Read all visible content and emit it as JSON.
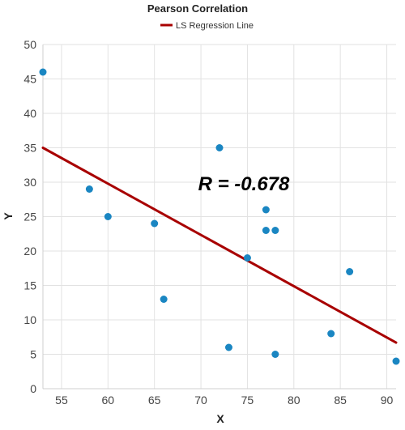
{
  "chart_data": {
    "type": "scatter",
    "title": "Pearson Correlation",
    "xlabel": "X",
    "ylabel": "Y",
    "xlim": [
      53,
      91
    ],
    "ylim": [
      0,
      50
    ],
    "xticks": [
      55,
      60,
      65,
      70,
      75,
      80,
      85,
      90
    ],
    "yticks": [
      0,
      5,
      10,
      15,
      20,
      25,
      30,
      35,
      40,
      45,
      50
    ],
    "grid": true,
    "legend_position": "top",
    "annotation": "R = -0.678",
    "points": [
      {
        "x": 53,
        "y": 46
      },
      {
        "x": 58,
        "y": 29
      },
      {
        "x": 60,
        "y": 25
      },
      {
        "x": 65,
        "y": 24
      },
      {
        "x": 66,
        "y": 13
      },
      {
        "x": 72,
        "y": 35
      },
      {
        "x": 73,
        "y": 6
      },
      {
        "x": 75,
        "y": 19
      },
      {
        "x": 77,
        "y": 26
      },
      {
        "x": 77,
        "y": 23
      },
      {
        "x": 78,
        "y": 23
      },
      {
        "x": 78,
        "y": 5
      },
      {
        "x": 84,
        "y": 8
      },
      {
        "x": 86,
        "y": 17
      },
      {
        "x": 91,
        "y": 4
      }
    ],
    "regression_line": {
      "name": "LS Regression Line",
      "x": [
        53,
        91
      ],
      "y": [
        35,
        6.7
      ]
    },
    "colors": {
      "points": "#1a86c2",
      "regression": "#a80000"
    }
  }
}
